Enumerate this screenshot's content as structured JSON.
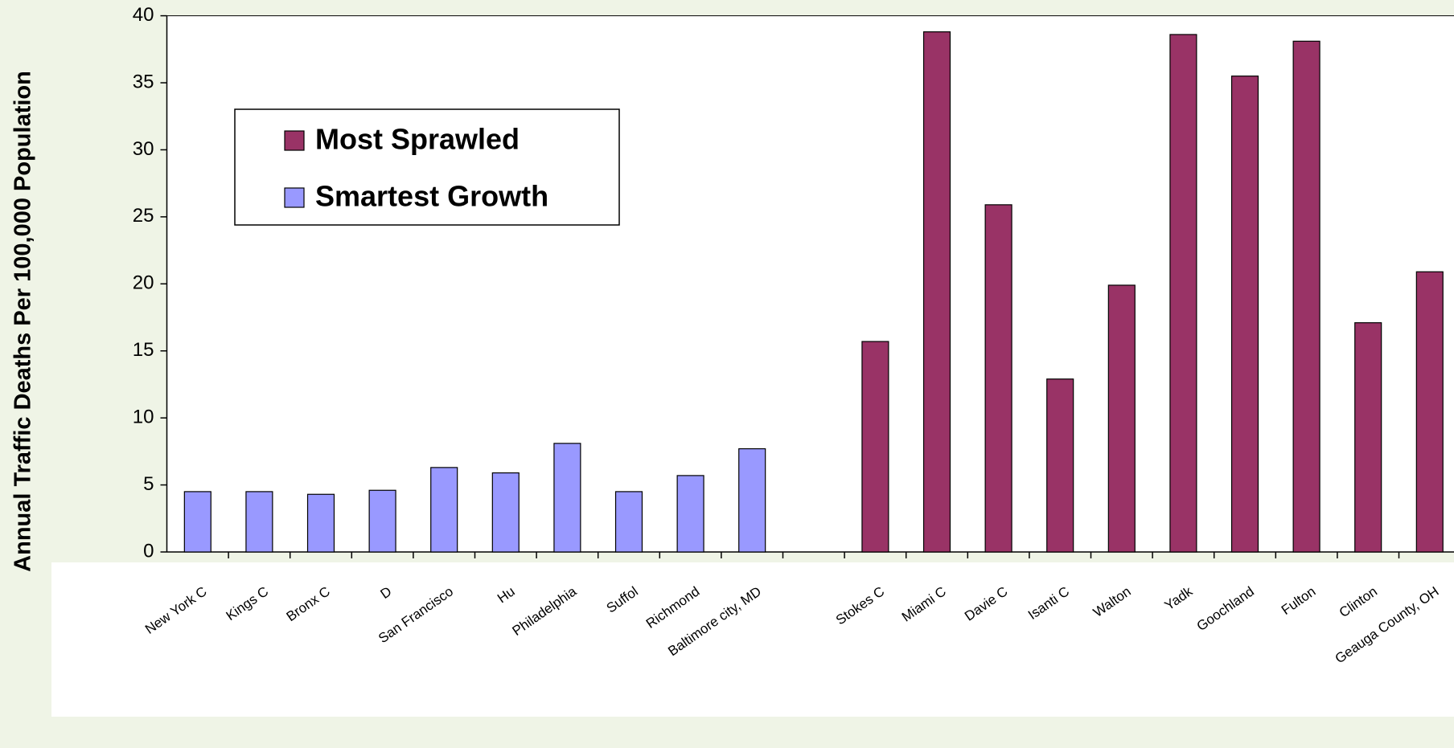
{
  "chart_data": {
    "type": "bar",
    "y_axis_label": "Annual Traffic Deaths Per 100,000 Population",
    "categories": [
      "New York C",
      "Kings C",
      "Bronx C",
      "D",
      "San Francisco",
      "Hu",
      "Philadelphia",
      "Suffol",
      "Richmond",
      "Baltimore city, MD",
      null,
      "Stokes C",
      "Miami C",
      "Davie C",
      "Isanti C",
      "Walton",
      "Yadk",
      "Goochland",
      "Fulton",
      "Clinton",
      "Geauga County, OH"
    ],
    "series": [
      {
        "name": "Most Sprawled",
        "color": "#993366",
        "values": [
          null,
          null,
          null,
          null,
          null,
          null,
          null,
          null,
          null,
          null,
          null,
          15.7,
          38.8,
          25.9,
          12.9,
          19.9,
          38.6,
          35.5,
          38.1,
          17.1,
          20.9
        ]
      },
      {
        "name": "Smartest Growth",
        "color": "#9999ff",
        "values": [
          4.5,
          4.5,
          4.3,
          4.6,
          6.3,
          5.9,
          8.1,
          4.5,
          5.7,
          7.7,
          null,
          null,
          null,
          null,
          null,
          null,
          null,
          null,
          null,
          null,
          null
        ]
      }
    ],
    "ylim": [
      0,
      40
    ],
    "yticks": [
      0,
      5,
      10,
      15,
      20,
      25,
      30,
      35,
      40
    ],
    "grid": false,
    "legend": "upper left"
  }
}
